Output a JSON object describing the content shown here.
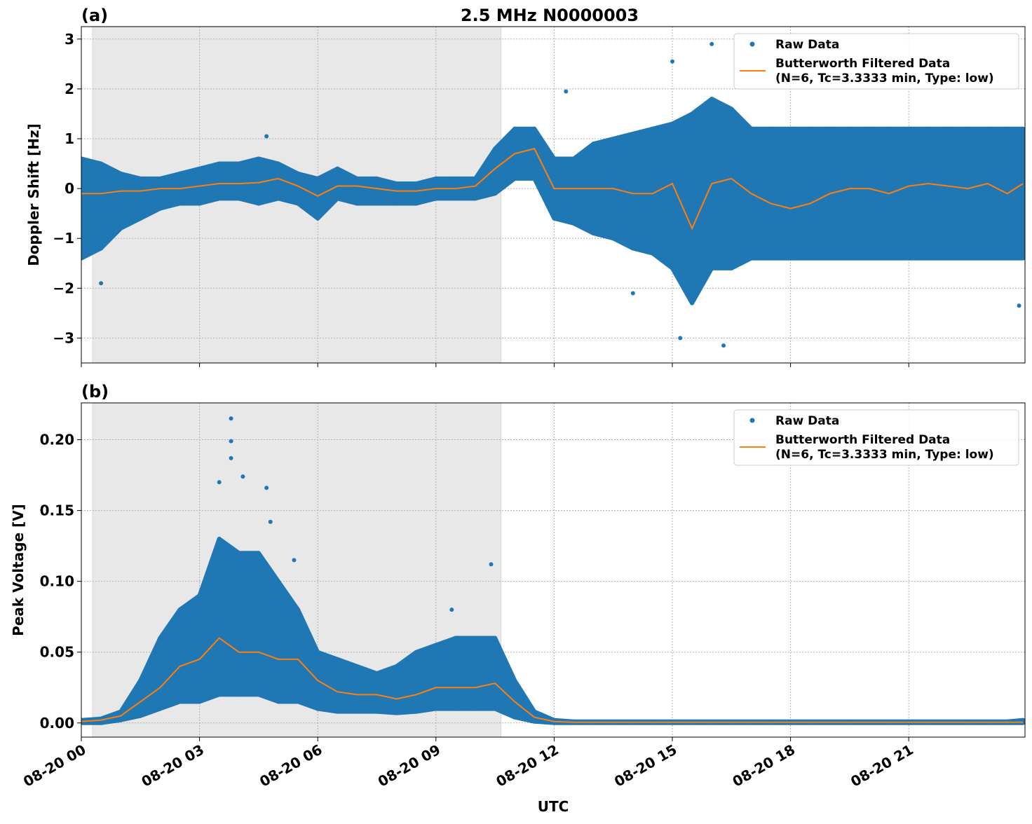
{
  "chart_data": {
    "title": "2.5 MHz N0000003",
    "type": "scatter",
    "xlabel": "UTC",
    "xlim": [
      "08-20 00:00",
      "08-20 23:57"
    ],
    "x_tick_labels": [
      "08-20 00",
      "08-20 03",
      "08-20 06",
      "08-20 09",
      "08-20 12",
      "08-20 15",
      "08-20 18",
      "08-20 21"
    ],
    "grid": true,
    "shaded_interval": [
      "08-20 00:17",
      "08-20 10:39"
    ],
    "colors": {
      "raw": "#1f77b4",
      "filtered": "#ff7f0e",
      "shade": "#e8e8e8"
    },
    "x": [
      "08-20 00:00",
      "08-20 00:30",
      "08-20 01:00",
      "08-20 01:30",
      "08-20 02:00",
      "08-20 02:30",
      "08-20 03:00",
      "08-20 03:30",
      "08-20 04:00",
      "08-20 04:30",
      "08-20 05:00",
      "08-20 05:30",
      "08-20 06:00",
      "08-20 06:30",
      "08-20 07:00",
      "08-20 07:30",
      "08-20 08:00",
      "08-20 08:30",
      "08-20 09:00",
      "08-20 09:30",
      "08-20 10:00",
      "08-20 10:30",
      "08-20 11:00",
      "08-20 11:30",
      "08-20 12:00",
      "08-20 12:30",
      "08-20 13:00",
      "08-20 13:30",
      "08-20 14:00",
      "08-20 14:30",
      "08-20 15:00",
      "08-20 15:30",
      "08-20 16:00",
      "08-20 16:30",
      "08-20 17:00",
      "08-20 17:30",
      "08-20 18:00",
      "08-20 18:30",
      "08-20 19:00",
      "08-20 19:30",
      "08-20 20:00",
      "08-20 20:30",
      "08-20 21:00",
      "08-20 21:30",
      "08-20 22:00",
      "08-20 22:30",
      "08-20 23:00",
      "08-20 23:30",
      "08-20 23:54"
    ],
    "panels": [
      {
        "label": "(a)",
        "ylabel": "Doppler Shift [Hz]",
        "ylim": [
          -3.5,
          3.25
        ],
        "y_ticks": [
          -3,
          -2,
          -1,
          0,
          1,
          2,
          3
        ],
        "y_tick_labels": [
          "−3",
          "−2",
          "−1",
          "0",
          "1",
          "2",
          "3"
        ],
        "legend": {
          "placement": "upper-right",
          "raw": "Raw Data",
          "filtered_line1": "Butterworth Filtered Data",
          "filtered_line2": "(N=6, Tc=3.3333 min, Type: low)"
        },
        "series": [
          {
            "name": "Butterworth Filtered Data (N=6, Tc=3.3333 min, Type: low)",
            "kind": "line",
            "values": [
              -0.1,
              -0.1,
              -0.05,
              -0.05,
              0,
              0,
              0.05,
              0.1,
              0.1,
              0.12,
              0.2,
              0.05,
              -0.15,
              0.05,
              0.05,
              0,
              -0.05,
              -0.05,
              0,
              0,
              0.05,
              0.4,
              0.7,
              0.8,
              0,
              0,
              0,
              0,
              -0.1,
              -0.1,
              0.1,
              -0.8,
              0.1,
              0.2,
              -0.1,
              -0.3,
              -0.4,
              -0.3,
              -0.1,
              0,
              0,
              -0.1,
              0.05,
              0.1,
              0.05,
              0,
              0.1,
              -0.1,
              0.1
            ]
          },
          {
            "name": "Raw Data",
            "kind": "scatter-envelope",
            "lower": [
              -1.4,
              -1.2,
              -0.8,
              -0.6,
              -0.4,
              -0.3,
              -0.3,
              -0.2,
              -0.2,
              -0.3,
              -0.2,
              -0.3,
              -0.6,
              -0.2,
              -0.3,
              -0.3,
              -0.3,
              -0.3,
              -0.2,
              -0.2,
              -0.2,
              -0.1,
              0.2,
              0.2,
              -0.6,
              -0.7,
              -0.9,
              -1.0,
              -1.2,
              -1.3,
              -1.6,
              -2.3,
              -1.6,
              -1.6,
              -1.4,
              -1.4,
              -1.4,
              -1.4,
              -1.4,
              -1.4,
              -1.4,
              -1.4,
              -1.4,
              -1.4,
              -1.4,
              -1.4,
              -1.4,
              -1.4,
              -1.4
            ],
            "upper": [
              0.6,
              0.5,
              0.3,
              0.2,
              0.2,
              0.3,
              0.4,
              0.5,
              0.5,
              0.6,
              0.5,
              0.3,
              0.2,
              0.4,
              0.2,
              0.2,
              0.1,
              0.1,
              0.2,
              0.2,
              0.2,
              0.8,
              1.2,
              1.2,
              0.6,
              0.6,
              0.9,
              1.0,
              1.1,
              1.2,
              1.3,
              1.5,
              1.8,
              1.6,
              1.2,
              1.2,
              1.2,
              1.2,
              1.2,
              1.2,
              1.2,
              1.2,
              1.2,
              1.2,
              1.2,
              1.2,
              1.2,
              1.2,
              1.2
            ],
            "outliers": [
              [
                "08-20 04:42",
                1.05
              ],
              [
                "08-20 15:00",
                2.55
              ],
              [
                "08-20 16:18",
                -3.15
              ],
              [
                "08-20 15:12",
                -3.0
              ],
              [
                "08-20 16:00",
                2.9
              ],
              [
                "08-20 12:18",
                1.95
              ],
              [
                "08-20 00:30",
                -1.9
              ],
              [
                "08-20 23:48",
                -2.35
              ],
              [
                "08-20 14:00",
                -2.1
              ]
            ]
          }
        ]
      },
      {
        "label": "(b)",
        "ylabel": "Peak Voltage [V]",
        "ylim": [
          -0.01,
          0.226
        ],
        "y_ticks": [
          0,
          0.05,
          0.1,
          0.15,
          0.2
        ],
        "y_tick_labels": [
          "0.00",
          "0.05",
          "0.10",
          "0.15",
          "0.20"
        ],
        "legend": {
          "placement": "upper-right",
          "raw": "Raw Data",
          "filtered_line1": "Butterworth Filtered Data",
          "filtered_line2": "(N=6, Tc=3.3333 min, Type: low)"
        },
        "series": [
          {
            "name": "Butterworth Filtered Data (N=6, Tc=3.3333 min, Type: low)",
            "kind": "line",
            "values": [
              0.001,
              0.002,
              0.005,
              0.015,
              0.025,
              0.04,
              0.045,
              0.06,
              0.05,
              0.05,
              0.045,
              0.045,
              0.03,
              0.022,
              0.02,
              0.02,
              0.017,
              0.02,
              0.025,
              0.025,
              0.025,
              0.028,
              0.015,
              0.004,
              0.001,
              0.0005,
              0.0005,
              0.0005,
              0.0005,
              0.0005,
              0.0005,
              0.0005,
              0.0005,
              0.0005,
              0.0005,
              0.0005,
              0.0005,
              0.0005,
              0.0005,
              0.0005,
              0.0005,
              0.0005,
              0.0005,
              0.0005,
              0.0005,
              0.0005,
              0.0005,
              0.0005,
              0.0005
            ]
          },
          {
            "name": "Raw Data",
            "kind": "scatter-envelope",
            "lower": [
              0,
              0,
              0.002,
              0.005,
              0.01,
              0.015,
              0.015,
              0.02,
              0.02,
              0.02,
              0.015,
              0.015,
              0.01,
              0.008,
              0.008,
              0.008,
              0.007,
              0.008,
              0.01,
              0.01,
              0.01,
              0.01,
              0.004,
              0.001,
              0,
              0,
              0,
              0,
              0,
              0,
              0,
              0,
              0,
              0,
              0,
              0,
              0,
              0,
              0,
              0,
              0,
              0,
              0,
              0,
              0,
              0,
              0,
              0,
              0
            ],
            "upper": [
              0.002,
              0.003,
              0.008,
              0.03,
              0.06,
              0.08,
              0.09,
              0.13,
              0.12,
              0.12,
              0.1,
              0.08,
              0.05,
              0.045,
              0.04,
              0.035,
              0.04,
              0.05,
              0.055,
              0.06,
              0.06,
              0.06,
              0.03,
              0.008,
              0.002,
              0.001,
              0.001,
              0.001,
              0.001,
              0.001,
              0.001,
              0.001,
              0.001,
              0.001,
              0.001,
              0.001,
              0.001,
              0.001,
              0.001,
              0.001,
              0.001,
              0.001,
              0.001,
              0.001,
              0.001,
              0.001,
              0.001,
              0.001,
              0.002
            ],
            "outliers": [
              [
                "08-20 03:48",
                0.215
              ],
              [
                "08-20 03:48",
                0.199
              ],
              [
                "08-20 03:48",
                0.187
              ],
              [
                "08-20 04:06",
                0.174
              ],
              [
                "08-20 04:42",
                0.166
              ],
              [
                "08-20 04:48",
                0.142
              ],
              [
                "08-20 05:24",
                0.115
              ],
              [
                "08-20 10:24",
                0.112
              ],
              [
                "08-20 09:24",
                0.08
              ],
              [
                "08-20 03:30",
                0.17
              ]
            ]
          }
        ]
      }
    ]
  }
}
